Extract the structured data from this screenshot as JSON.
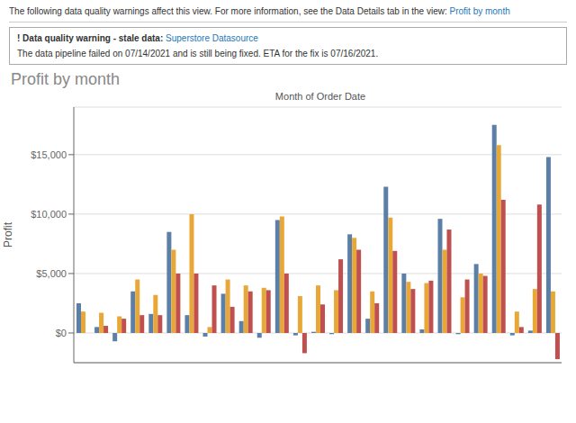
{
  "chart_data": {
    "type": "bar",
    "title": "Profit by month",
    "annotations": [
      "The following data quality warnings affect this view. For more information, see the Data Details tab in the view:",
      "Profit by month",
      "! Data quality warning - stale data:",
      "Superstore Datasource",
      "The data pipeline failed on 07/14/2021 and is still being fixed. ETA for the fix is 07/16/2021."
    ],
    "xlabel": "Month of Order Date",
    "ylabel": "Profit",
    "categories": [
      null,
      null,
      null,
      null,
      null,
      null,
      null,
      null,
      null,
      null,
      null,
      null,
      null,
      null,
      null,
      null,
      null,
      null,
      null,
      null,
      null,
      null,
      null,
      null,
      null,
      null,
      null
    ],
    "series": [
      {
        "color": "#5B7FA6",
        "values": [
          2500,
          500,
          -700,
          3500,
          1600,
          8500,
          1500,
          -300,
          3300,
          1000,
          -400,
          9500,
          -200,
          100,
          -100,
          8300,
          1200,
          12300,
          5000,
          300,
          9600,
          -100,
          5800,
          17500,
          -200,
          200,
          14800
        ]
      },
      {
        "color": "#E8A838",
        "values": [
          1800,
          1700,
          1400,
          4500,
          3200,
          7000,
          10000,
          500,
          4500,
          4000,
          3800,
          9800,
          3100,
          4000,
          3600,
          8000,
          3500,
          9700,
          4300,
          4200,
          7000,
          3000,
          5000,
          15800,
          1800,
          3700,
          3500
        ]
      },
      {
        "color": "#C05050",
        "values": [
          0,
          600,
          1200,
          1500,
          1500,
          5000,
          5000,
          4000,
          2200,
          3500,
          3600,
          5000,
          -1700,
          2400,
          6200,
          7000,
          2500,
          6900,
          3700,
          4400,
          8700,
          4500,
          4800,
          11200,
          500,
          10800,
          -2200
        ]
      }
    ],
    "ylim": [
      -2500,
      19000
    ],
    "yticks": [
      {
        "value": 0,
        "label": "$0"
      },
      {
        "value": 5000,
        "label": "$5,000"
      },
      {
        "value": 10000,
        "label": "$10,000"
      },
      {
        "value": 15000,
        "label": "$15,000"
      }
    ],
    "grid": true,
    "tick_labels": "y"
  }
}
